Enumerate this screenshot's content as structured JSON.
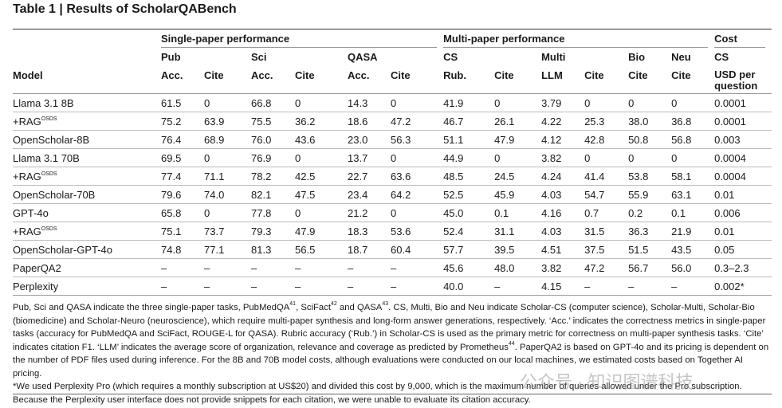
{
  "title": "Table 1 | Results of ScholarQABench",
  "table": {
    "groups": [
      "Single-paper performance",
      "Multi-paper performance",
      "Cost"
    ],
    "tasks": [
      "Pub",
      "Sci",
      "QASA",
      "CS",
      "Multi",
      "Bio",
      "Neu",
      "CS"
    ],
    "columns": [
      "Model",
      "Acc.",
      "Cite",
      "Acc.",
      "Cite",
      "Acc.",
      "Cite",
      "Rub.",
      "Cite",
      "LLM",
      "Cite",
      "Cite",
      "Cite",
      "USD per question"
    ],
    "rows": [
      {
        "model": "Llama 3.1 8B",
        "cells": [
          "61.5",
          "0",
          "66.8",
          "0",
          "14.3",
          "0",
          "41.9",
          "0",
          "3.79",
          "0",
          "0",
          "0",
          "0.0001"
        ]
      },
      {
        "model": "+RAG",
        "model_sup": "OSDS",
        "cells": [
          "75.2",
          "63.9",
          "75.5",
          "36.2",
          "18.6",
          "47.2",
          "46.7",
          "26.1",
          "4.22",
          "25.3",
          "38.0",
          "36.8",
          "0.0001"
        ]
      },
      {
        "model": "OpenScholar-8B",
        "cells": [
          "76.4",
          "68.9",
          "76.0",
          "43.6",
          "23.0",
          "56.3",
          "51.1",
          "47.9",
          "4.12",
          "42.8",
          "50.8",
          "56.8",
          "0.003"
        ]
      },
      {
        "model": "Llama 3.1 70B",
        "cells": [
          "69.5",
          "0",
          "76.9",
          "0",
          "13.7",
          "0",
          "44.9",
          "0",
          "3.82",
          "0",
          "0",
          "0",
          "0.0004"
        ]
      },
      {
        "model": "+RAG",
        "model_sup": "OSDS",
        "cells": [
          "77.4",
          "71.1",
          "78.2",
          "42.5",
          "22.7",
          "63.6",
          "48.5",
          "24.5",
          "4.24",
          "41.4",
          "53.8",
          "58.1",
          "0.0004"
        ]
      },
      {
        "model": "OpenScholar-70B",
        "cells": [
          "79.6",
          "74.0",
          "82.1",
          "47.5",
          "23.4",
          "64.2",
          "52.5",
          "45.9",
          "4.03",
          "54.7",
          "55.9",
          "63.1",
          "0.01"
        ]
      },
      {
        "model": "GPT-4o",
        "cells": [
          "65.8",
          "0",
          "77.8",
          "0",
          "21.2",
          "0",
          "45.0",
          "0.1",
          "4.16",
          "0.7",
          "0.2",
          "0.1",
          "0.006"
        ]
      },
      {
        "model": "+RAG",
        "model_sup": "OSDS",
        "cells": [
          "75.1",
          "73.7",
          "79.3",
          "47.9",
          "18.3",
          "53.6",
          "52.4",
          "31.1",
          "4.03",
          "31.5",
          "36.3",
          "21.9",
          "0.01"
        ]
      },
      {
        "model": "OpenScholar-GPT-4o",
        "cells": [
          "74.8",
          "77.1",
          "81.3",
          "56.5",
          "18.7",
          "60.4",
          "57.7",
          "39.5",
          "4.51",
          "37.5",
          "51.5",
          "43.5",
          "0.05"
        ]
      },
      {
        "model": "PaperQA2",
        "cells": [
          "–",
          "–",
          "–",
          "–",
          "–",
          "–",
          "45.6",
          "48.0",
          "3.82",
          "47.2",
          "56.7",
          "56.0",
          "0.3–2.3"
        ]
      },
      {
        "model": "Perplexity",
        "cells": [
          "–",
          "–",
          "–",
          "–",
          "–",
          "–",
          "40.0",
          "–",
          "4.15",
          "–",
          "–",
          "–",
          "0.002*"
        ]
      }
    ]
  },
  "footnote": [
    [
      {
        "text": "Pub, Sci and QASA indicate the three single-paper tasks, PubMedQA"
      },
      {
        "sup": "41"
      },
      {
        "text": ", SciFact"
      },
      {
        "sup": "42"
      },
      {
        "text": " and QASA"
      },
      {
        "sup": "43"
      },
      {
        "text": ". CS, Multi, Bio and Neu indicate Scholar-CS (computer science), Scholar-Multi, Scholar-Bio (biomedicine) and Scholar-Neuro (neuroscience), which require multi-paper synthesis and long-form answer generations, respectively. ‘Acc.’ indicates the correctness metrics in single-paper tasks (accuracy for PubMedQA and SciFact, ROUGE-L for QASA). Rubric accuracy (‘Rub.’) in Scholar-CS is used as the primary metric for correctness on multi-paper synthesis tasks. ‘Cite’ indicates citation F1. ‘LLM’ indicates the average score of organization, relevance and coverage as predicted by Prometheus"
      },
      {
        "sup": "44"
      },
      {
        "text": ". PaperQA2 is based on GPT-4o and its pricing is dependent on the number of PDF files used during inference. For the 8B and 70B model costs, although evaluations were conducted on our local machines, we estimated costs based on Together AI pricing."
      }
    ],
    [
      {
        "text": "*We used Perplexity Pro (which requires a monthly subscription at US$20) and divided this cost by 9,000, which is the maximum number of queries allowed under the Pro subscription. Because the Perplexity user interface does not provide snippets for each citation, we were unable to evaluate its citation accuracy."
      }
    ]
  ],
  "watermark": "公众号 · 知识图谱科技"
}
